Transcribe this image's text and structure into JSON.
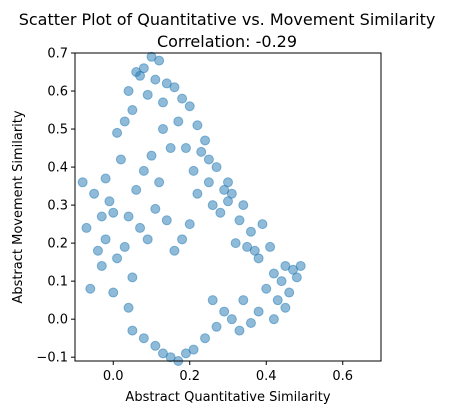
{
  "chart_data": {
    "type": "scatter",
    "title": "Scatter Plot of Quantitative vs. Movement Similarity",
    "subtitle": "Correlation: -0.29",
    "xlabel": "Abstract Quantitative Similarity",
    "ylabel": "Abstract Movement Similarity",
    "xlim": [
      -0.1,
      0.7
    ],
    "ylim": [
      -0.11,
      0.7
    ],
    "x_ticks": [
      "0.0",
      "0.2",
      "0.4",
      "0.6"
    ],
    "y_ticks": [
      "−0.1",
      "0.0",
      "0.1",
      "0.2",
      "0.3",
      "0.4",
      "0.5",
      "0.6",
      "0.7"
    ],
    "grid": false,
    "legend": "none",
    "point_color": "#1f77b4",
    "point_alpha": 0.5,
    "series": [
      {
        "points": [
          [
            -0.08,
            0.36
          ],
          [
            -0.07,
            0.24
          ],
          [
            -0.06,
            0.08
          ],
          [
            -0.05,
            0.33
          ],
          [
            -0.04,
            0.18
          ],
          [
            -0.03,
            0.27
          ],
          [
            -0.03,
            0.14
          ],
          [
            -0.02,
            0.21
          ],
          [
            -0.02,
            0.37
          ],
          [
            -0.01,
            0.31
          ],
          [
            0.0,
            0.07
          ],
          [
            0.0,
            0.28
          ],
          [
            0.01,
            0.49
          ],
          [
            0.01,
            0.16
          ],
          [
            0.02,
            0.42
          ],
          [
            0.03,
            0.52
          ],
          [
            0.04,
            0.6
          ],
          [
            0.04,
            0.03
          ],
          [
            0.05,
            0.55
          ],
          [
            0.05,
            -0.03
          ],
          [
            0.06,
            0.65
          ],
          [
            0.07,
            0.64
          ],
          [
            0.08,
            0.66
          ],
          [
            0.08,
            -0.05
          ],
          [
            0.09,
            0.59
          ],
          [
            0.1,
            0.69
          ],
          [
            0.11,
            0.63
          ],
          [
            0.11,
            -0.07
          ],
          [
            0.12,
            0.68
          ],
          [
            0.13,
            0.57
          ],
          [
            0.13,
            -0.09
          ],
          [
            0.14,
            0.62
          ],
          [
            0.15,
            -0.1
          ],
          [
            0.16,
            0.61
          ],
          [
            0.17,
            -0.11
          ],
          [
            0.18,
            0.58
          ],
          [
            0.19,
            -0.09
          ],
          [
            0.2,
            0.56
          ],
          [
            0.21,
            -0.08
          ],
          [
            0.22,
            0.51
          ],
          [
            0.23,
            0.44
          ],
          [
            0.24,
            -0.05
          ],
          [
            0.25,
            0.42
          ],
          [
            0.26,
            0.3
          ],
          [
            0.27,
            -0.02
          ],
          [
            0.28,
            0.28
          ],
          [
            0.29,
            0.34
          ],
          [
            0.3,
            0.31
          ],
          [
            0.31,
            0.33
          ],
          [
            0.32,
            0.2
          ],
          [
            0.33,
            0.26
          ],
          [
            0.34,
            0.3
          ],
          [
            0.35,
            0.19
          ],
          [
            0.36,
            0.23
          ],
          [
            0.37,
            0.18
          ],
          [
            0.38,
            0.16
          ],
          [
            0.39,
            0.25
          ],
          [
            0.4,
            0.08
          ],
          [
            0.41,
            0.19
          ],
          [
            0.42,
            0.12
          ],
          [
            0.43,
            0.05
          ],
          [
            0.44,
            0.1
          ],
          [
            0.45,
            0.14
          ],
          [
            0.46,
            0.07
          ],
          [
            0.47,
            0.13
          ],
          [
            0.48,
            0.11
          ],
          [
            0.49,
            0.14
          ],
          [
            0.45,
            0.03
          ],
          [
            0.42,
            0.0
          ],
          [
            0.38,
            0.02
          ],
          [
            0.36,
            -0.01
          ],
          [
            0.34,
            0.05
          ],
          [
            0.33,
            -0.03
          ],
          [
            0.31,
            0.0
          ],
          [
            0.3,
            0.36
          ],
          [
            0.29,
            0.02
          ],
          [
            0.27,
            0.4
          ],
          [
            0.26,
            0.05
          ],
          [
            0.25,
            0.36
          ],
          [
            0.24,
            0.47
          ],
          [
            0.22,
            0.33
          ],
          [
            0.21,
            0.39
          ],
          [
            0.2,
            0.25
          ],
          [
            0.19,
            0.45
          ],
          [
            0.18,
            0.21
          ],
          [
            0.17,
            0.52
          ],
          [
            0.16,
            0.18
          ],
          [
            0.15,
            0.45
          ],
          [
            0.14,
            0.26
          ],
          [
            0.13,
            0.5
          ],
          [
            0.12,
            0.36
          ],
          [
            0.11,
            0.29
          ],
          [
            0.1,
            0.43
          ],
          [
            0.09,
            0.21
          ],
          [
            0.08,
            0.39
          ],
          [
            0.07,
            0.24
          ],
          [
            0.06,
            0.34
          ],
          [
            0.05,
            0.11
          ],
          [
            0.04,
            0.27
          ],
          [
            0.03,
            0.19
          ]
        ]
      }
    ]
  }
}
